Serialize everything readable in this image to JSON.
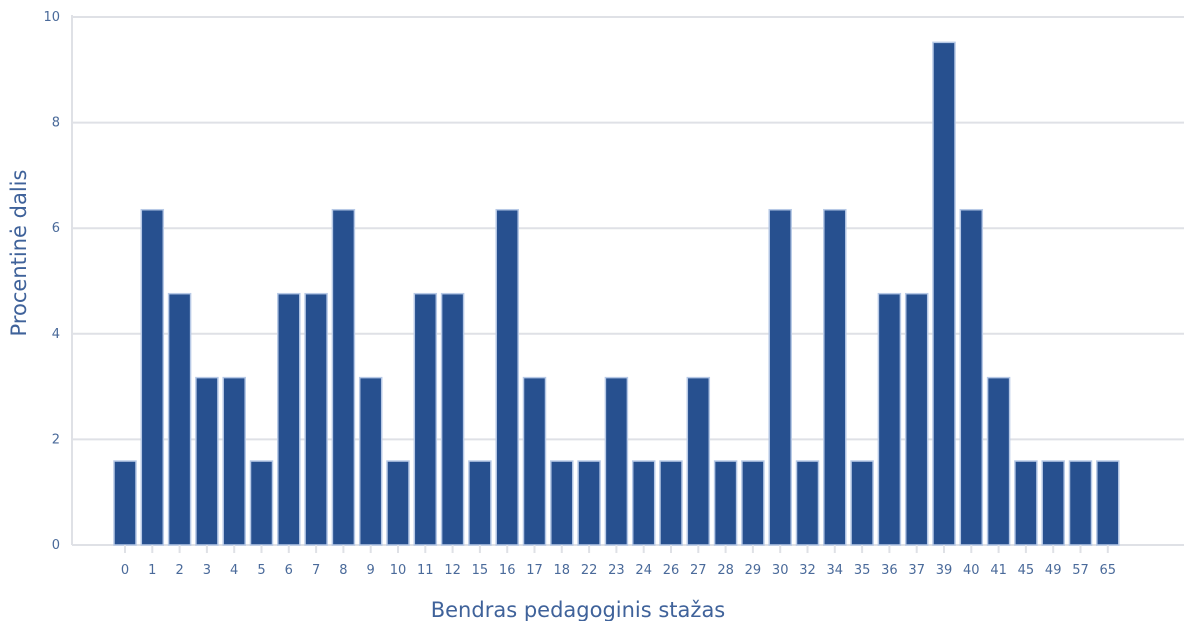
{
  "chart_data": {
    "type": "bar",
    "xlabel": "Bendras pedagoginis stažas",
    "ylabel": "Procentinė dalis",
    "ylim": [
      0,
      10
    ],
    "yticks": [
      0,
      2,
      4,
      6,
      8,
      10
    ],
    "grid": true,
    "categories": [
      "0",
      "1",
      "2",
      "3",
      "4",
      "5",
      "6",
      "7",
      "8",
      "9",
      "10",
      "11",
      "12",
      "15",
      "16",
      "17",
      "18",
      "22",
      "23",
      "24",
      "26",
      "27",
      "28",
      "29",
      "30",
      "32",
      "34",
      "35",
      "36",
      "37",
      "39",
      "40",
      "41",
      "45",
      "49",
      "57",
      "65"
    ],
    "values": [
      1.59,
      6.35,
      4.76,
      3.17,
      3.17,
      1.59,
      4.76,
      4.76,
      6.35,
      3.17,
      1.59,
      4.76,
      4.76,
      1.59,
      6.35,
      3.17,
      1.59,
      1.59,
      3.17,
      1.59,
      1.59,
      3.17,
      1.59,
      1.59,
      6.35,
      1.59,
      6.35,
      1.59,
      4.76,
      4.76,
      9.52,
      6.35,
      3.17,
      1.59,
      1.59,
      1.59,
      1.59
    ],
    "colors": {
      "bar": "#27508f",
      "bar_edge": "#b7c9e6",
      "grid": "#dfe1e6",
      "text": "#4a6a9a"
    }
  }
}
